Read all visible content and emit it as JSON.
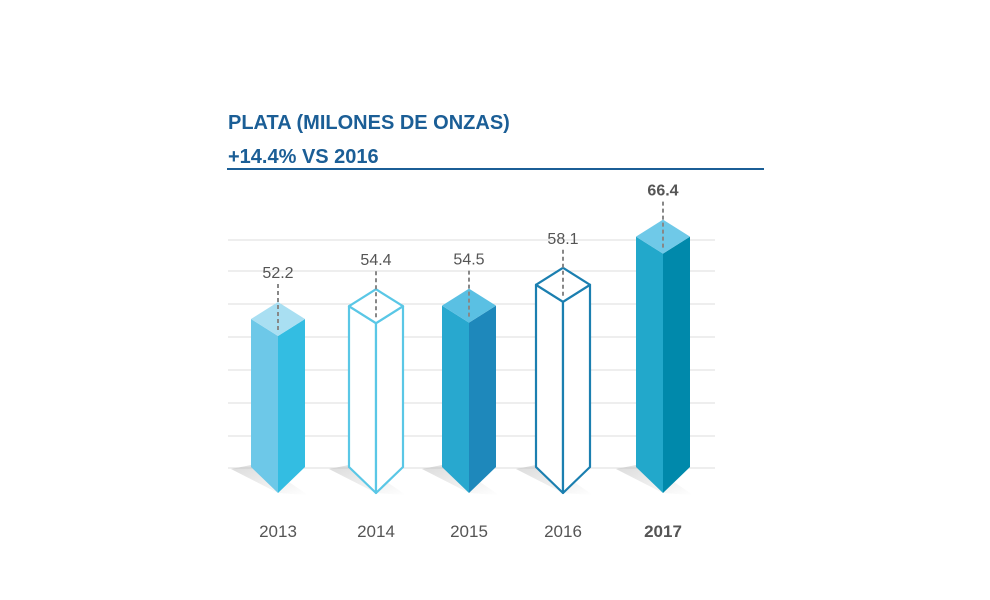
{
  "header": {
    "title": "PLATA (MILONES DE ONZAS)",
    "subtitle": "+14.4% VS 2016"
  },
  "chart_data": {
    "type": "bar",
    "title": "PLATA (MILONES DE ONZAS)",
    "subtitle": "+14.4% VS 2016",
    "categories": [
      "2013",
      "2014",
      "2015",
      "2016",
      "2017"
    ],
    "values": [
      52.2,
      54.4,
      54.5,
      58.1,
      66.4
    ],
    "value_labels": [
      "52.2",
      "54.4",
      "54.5",
      "58.1",
      "66.4"
    ],
    "highlight": "2017",
    "grid": true,
    "bar_styles": [
      {
        "fill": "solid",
        "front": "#6dc8e8",
        "side": "#33bde2",
        "top": "#a9dff2"
      },
      {
        "fill": "outline",
        "stroke": "#5ac7e6"
      },
      {
        "fill": "solid",
        "front": "#28a8cf",
        "side": "#1e88bb",
        "top": "#5ac0e3"
      },
      {
        "fill": "outline",
        "stroke": "#1b7fb0"
      },
      {
        "fill": "solid",
        "front": "#22a8cb",
        "side": "#0089ab",
        "top": "#6fc9e8"
      }
    ],
    "colors": {
      "title": "#1b5e96",
      "grid": "#dcdcdc",
      "label": "#555555",
      "leader": "#888888"
    }
  }
}
